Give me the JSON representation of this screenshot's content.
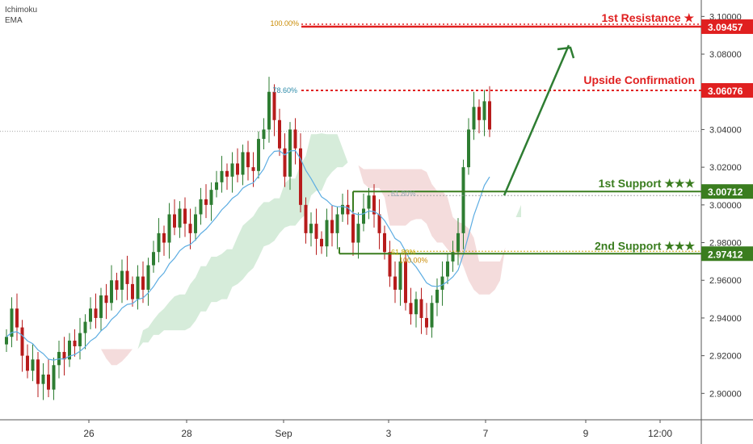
{
  "indicators": [
    "Ichimoku",
    "EMA"
  ],
  "chart_data": {
    "type": "candlestick",
    "x_axis_labels": [
      "26",
      "28",
      "Sep",
      "3",
      "7",
      "9",
      "12:00"
    ],
    "y_axis_ticks": [
      "3.10000",
      "3.08000",
      "3.06000",
      "3.04000",
      "3.02000",
      "3.00000",
      "2.98000",
      "2.96000",
      "2.94000",
      "2.92000",
      "2.90000"
    ],
    "ylim": [
      2.886,
      3.113
    ],
    "current_price_line": 3.039,
    "levels": [
      {
        "label": "1st Resistance ★",
        "price_label": "3.09457",
        "value": 3.09457,
        "color": "#e02020"
      },
      {
        "label": "Upside Confirmation",
        "price_label": "3.06076",
        "value": 3.06076,
        "color": "#e02020"
      },
      {
        "label": "1st Support ★★★",
        "price_label": "3.00712",
        "value": 3.00712,
        "color": "#3a7d1f"
      },
      {
        "label": "2nd Support ★★★",
        "price_label": "2.97412",
        "value": 2.97412,
        "color": "#3a7d1f"
      }
    ],
    "fib_labels": [
      "100.00%",
      "78.60%",
      "61.80%",
      "61.80%",
      "100.00%"
    ],
    "colors": {
      "up": "#2e7d32",
      "down": "#b71c1c",
      "ema": "#5dade2",
      "cloud_green": "#cfe9d4",
      "cloud_red": "#f2d6d6",
      "arrow": "#2e7d32"
    },
    "closes": [
      2.93,
      2.945,
      2.935,
      2.92,
      2.912,
      2.918,
      2.905,
      2.91,
      2.902,
      2.915,
      2.922,
      2.918,
      2.928,
      2.925,
      2.932,
      2.938,
      2.945,
      2.94,
      2.952,
      2.948,
      2.96,
      2.955,
      2.965,
      2.958,
      2.95,
      2.962,
      2.955,
      2.968,
      2.975,
      2.985,
      2.98,
      2.995,
      2.988,
      2.998,
      2.99,
      2.985,
      2.995,
      3.003,
      3.0,
      3.008,
      3.012,
      3.018,
      3.015,
      3.022,
      3.016,
      3.028,
      3.02,
      3.018,
      3.035,
      3.04,
      3.06,
      3.045,
      3.03,
      3.015,
      3.04,
      3.03,
      3.0,
      2.985,
      2.99,
      2.982,
      2.978,
      2.992,
      2.985,
      2.995,
      3.0,
      2.995,
      2.98,
      2.99,
      2.998,
      3.005,
      2.995,
      2.985,
      2.975,
      2.962,
      2.955,
      2.97,
      2.948,
      2.942,
      2.95,
      2.94,
      2.935,
      2.948,
      2.955,
      2.962,
      2.97,
      2.975,
      2.985,
      3.02,
      3.04,
      3.052,
      3.045,
      3.055,
      3.04
    ]
  }
}
